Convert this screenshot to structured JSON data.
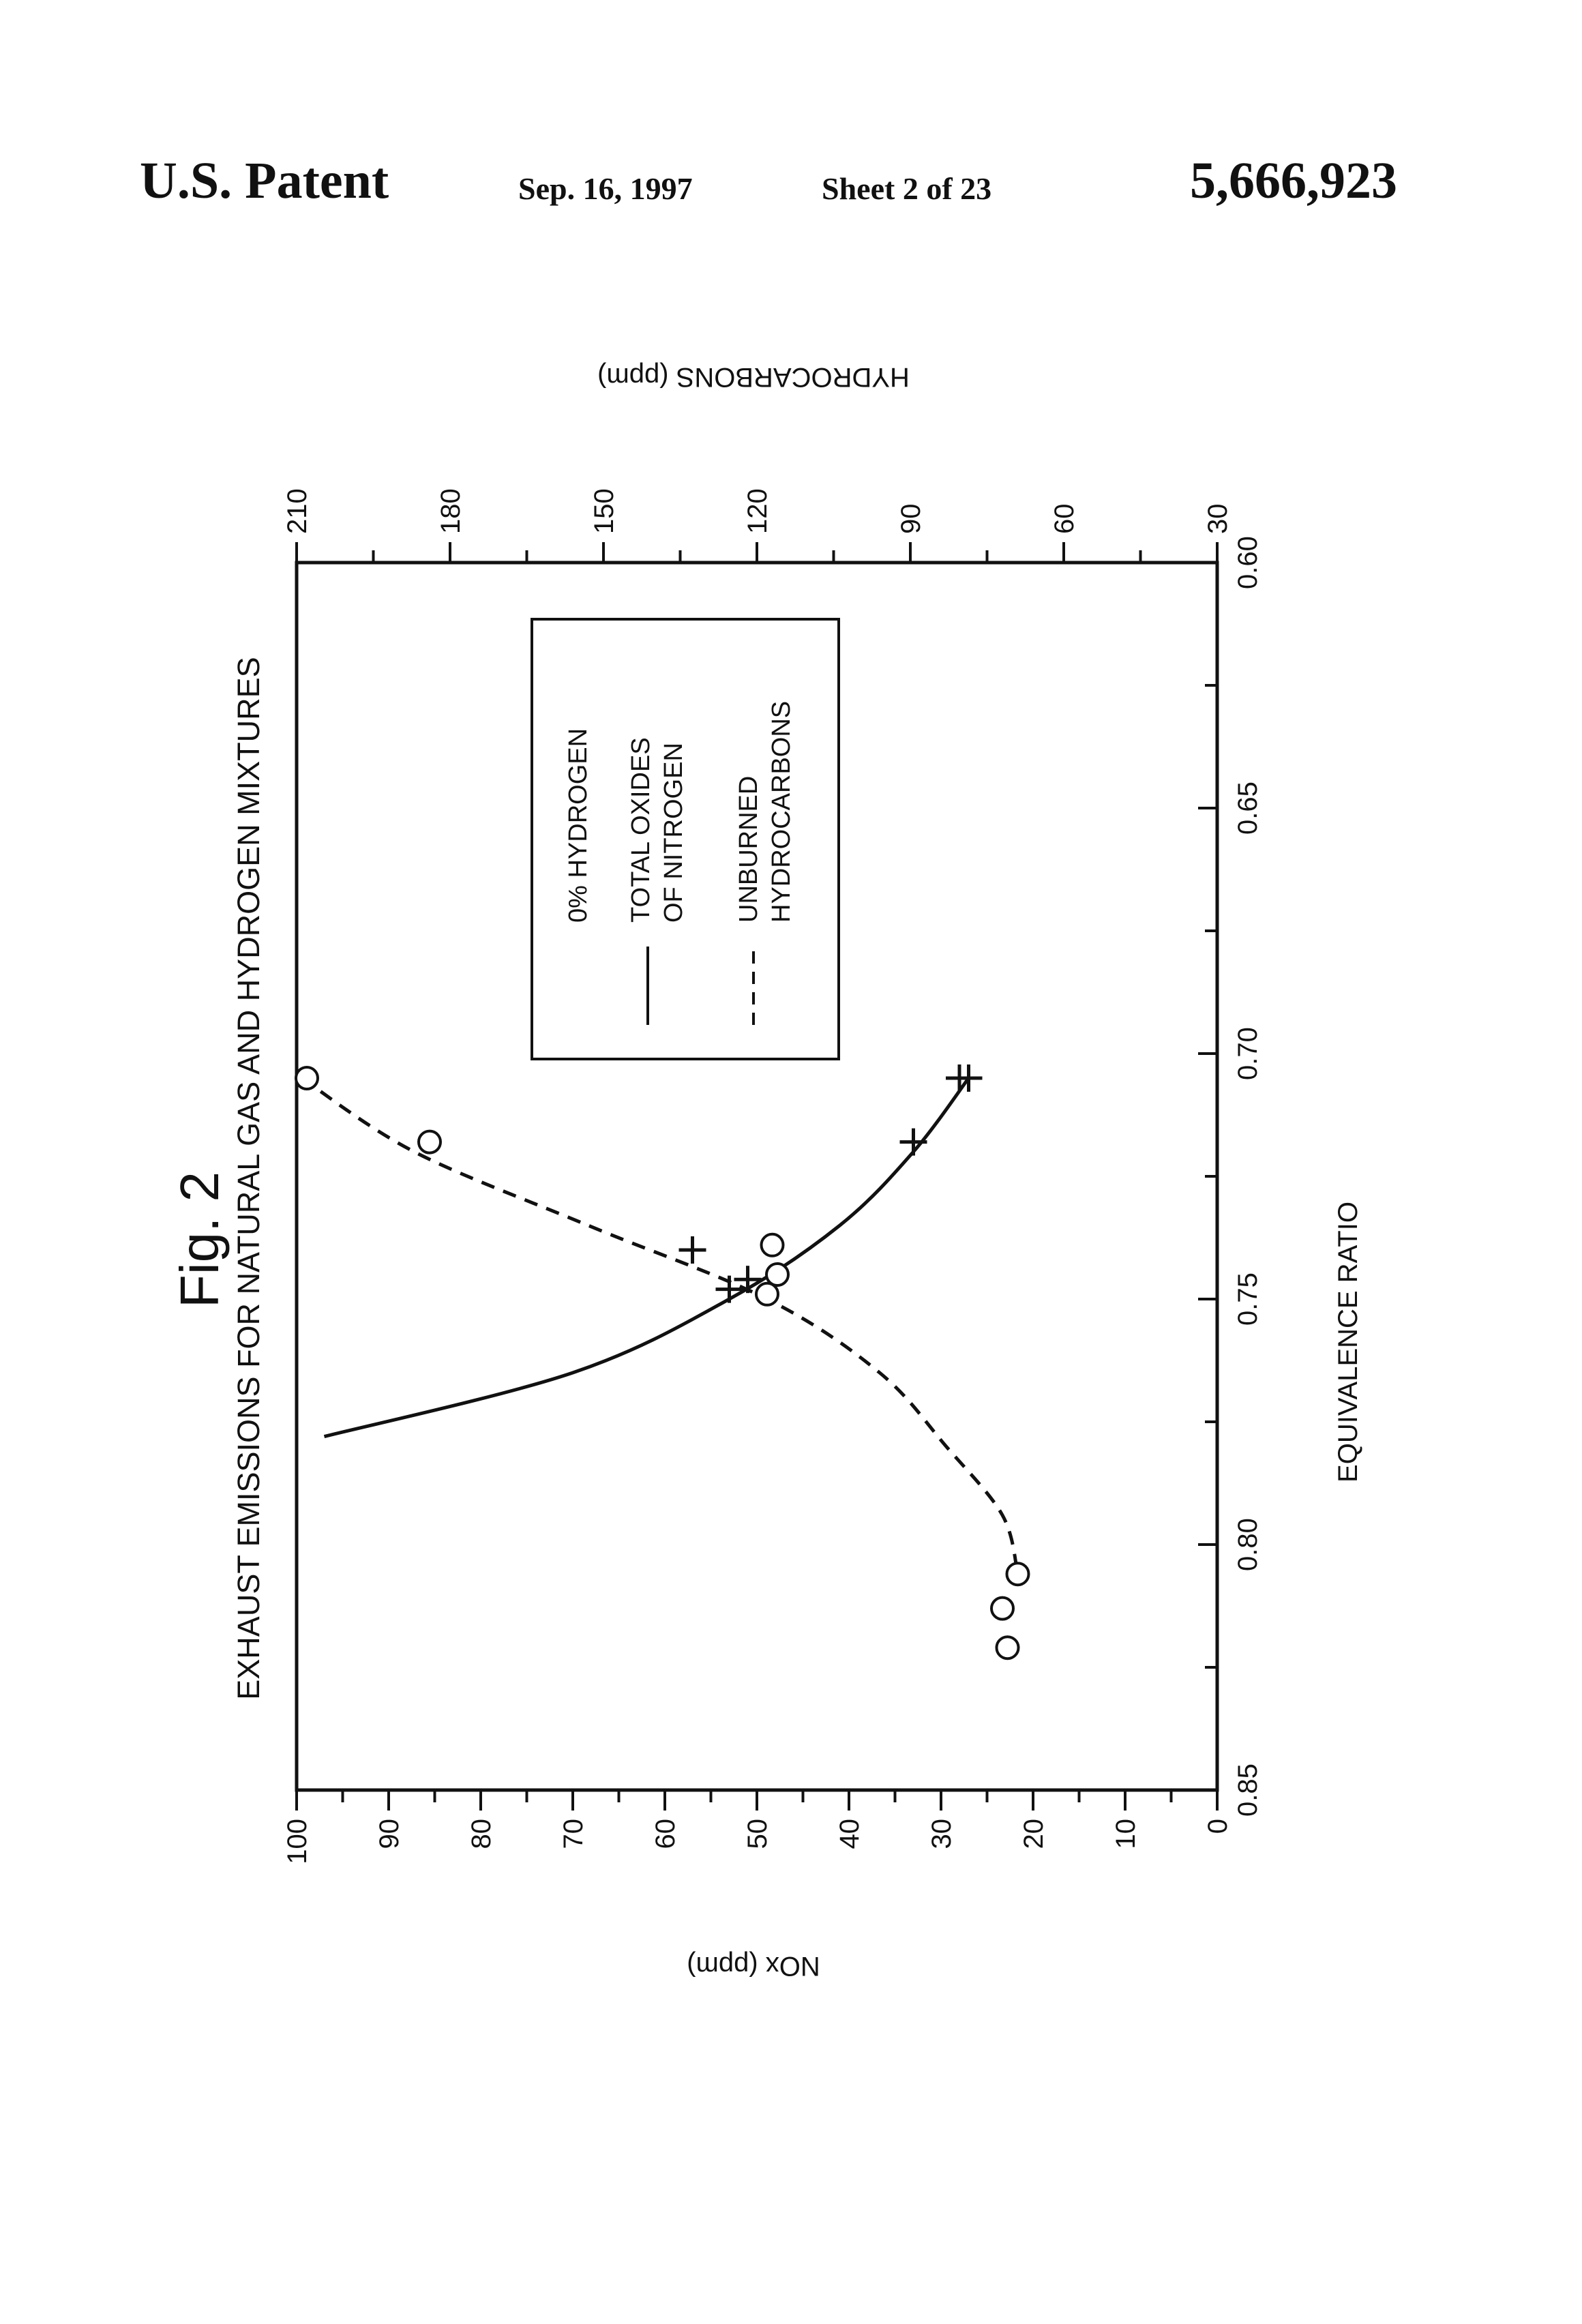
{
  "header": {
    "left": "U.S. Patent",
    "date": "Sep. 16, 1997",
    "sheet": "Sheet 2 of 23",
    "number": "5,666,923"
  },
  "figure": {
    "label": "Fig. 2"
  },
  "chart_data": {
    "type": "scatter",
    "title": "EXHAUST EMISSIONS FOR NATURAL GAS AND HYDROGEN MIXTURES",
    "xlabel": "EQUIVALENCE RATIO",
    "ylabel_left": "NOx (ppm)",
    "ylabel_right": "HYDROCARBONS (ppm)",
    "xlim": [
      0.6,
      0.85
    ],
    "x_axis_reversed": true,
    "ylim_left": [
      0,
      100
    ],
    "ylim_right": [
      30,
      210
    ],
    "x_ticks": [
      "0.60",
      "0.65",
      "0.70",
      "0.75",
      "0.80",
      "0.85"
    ],
    "y_ticks_left": [
      "0",
      "10",
      "20",
      "30",
      "40",
      "50",
      "60",
      "70",
      "80",
      "90",
      "100"
    ],
    "y_ticks_right": [
      "30",
      "60",
      "90",
      "120",
      "150",
      "180",
      "210"
    ],
    "rotated": "90deg-counterclockwise",
    "grid": false,
    "legend": {
      "title": "0% HYDROGEN",
      "placement": "inside-top",
      "entries": [
        {
          "style": "solid",
          "label_lines": [
            "TOTAL OXIDES",
            "OF NITROGEN"
          ]
        },
        {
          "style": "dashed",
          "label_lines": [
            "UNBURNED",
            "HYDROCARBONS"
          ]
        }
      ]
    },
    "series": [
      {
        "axis": "left",
        "marker": "plus",
        "points": [
          {
            "x": 0.705,
            "y": 27
          },
          {
            "x": 0.705,
            "y": 28
          },
          {
            "x": 0.718,
            "y": 33
          },
          {
            "x": 0.74,
            "y": 57
          },
          {
            "x": 0.746,
            "y": 51
          },
          {
            "x": 0.748,
            "y": 53
          }
        ],
        "fit": [
          {
            "x": 0.705,
            "y": 27
          },
          {
            "x": 0.72,
            "y": 33
          },
          {
            "x": 0.735,
            "y": 41
          },
          {
            "x": 0.75,
            "y": 53
          },
          {
            "x": 0.765,
            "y": 70
          },
          {
            "x": 0.778,
            "y": 97
          }
        ]
      },
      {
        "axis": "right",
        "marker": "circle",
        "points": [
          {
            "x": 0.705,
            "y": 208
          },
          {
            "x": 0.718,
            "y": 184
          },
          {
            "x": 0.739,
            "y": 117
          },
          {
            "x": 0.745,
            "y": 116
          },
          {
            "x": 0.749,
            "y": 118
          },
          {
            "x": 0.806,
            "y": 69
          },
          {
            "x": 0.813,
            "y": 72
          },
          {
            "x": 0.821,
            "y": 71
          }
        ],
        "fit": [
          {
            "x": 0.705,
            "y": 209
          },
          {
            "x": 0.72,
            "y": 187
          },
          {
            "x": 0.735,
            "y": 153
          },
          {
            "x": 0.75,
            "y": 118
          },
          {
            "x": 0.765,
            "y": 96
          },
          {
            "x": 0.78,
            "y": 83
          },
          {
            "x": 0.794,
            "y": 72
          },
          {
            "x": 0.806,
            "y": 69
          }
        ]
      }
    ]
  }
}
